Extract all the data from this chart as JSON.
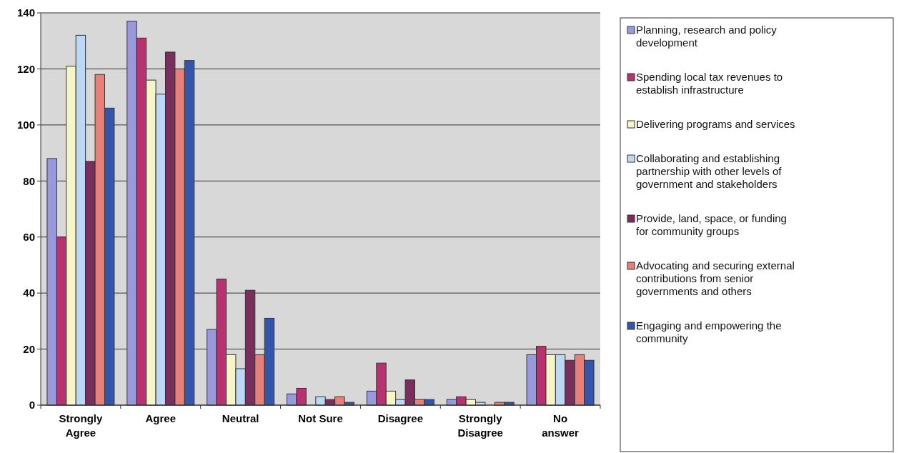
{
  "chart_data": {
    "type": "bar",
    "categories": [
      "Strongly Agree",
      "Agree",
      "Neutral",
      "Not Sure",
      "Disagree",
      "Strongly Disagree",
      "No answer"
    ],
    "ylim": [
      0,
      140
    ],
    "yticks": [
      0,
      20,
      40,
      60,
      80,
      100,
      120,
      140
    ],
    "grid": "y",
    "legend": "right",
    "series": [
      {
        "name": "Planning, research and policy development",
        "color": "#9999dd",
        "values": [
          88,
          137,
          27,
          4,
          5,
          2,
          18
        ]
      },
      {
        "name": "Spending local tax revenues to establish infrastructure",
        "color": "#b83270",
        "values": [
          60,
          131,
          45,
          6,
          15,
          3,
          21
        ]
      },
      {
        "name": "Delivering programs and services",
        "color": "#f5f5c8",
        "values": [
          121,
          116,
          18,
          0,
          5,
          2,
          18
        ]
      },
      {
        "name": "Collaborating and establishing partnership with other levels of government and stakeholders",
        "color": "#bcd8f5",
        "values": [
          132,
          111,
          13,
          3,
          2,
          1,
          18
        ]
      },
      {
        "name": "Provide, land, space, or funding for community groups",
        "color": "#7a2e5e",
        "values": [
          87,
          126,
          41,
          2,
          9,
          0,
          16
        ]
      },
      {
        "name": "Advocating and securing external contributions from senior governments and others",
        "color": "#e8807a",
        "values": [
          118,
          120,
          18,
          3,
          2,
          1,
          18
        ]
      },
      {
        "name": "Engaging and empowering the community",
        "color": "#3355aa",
        "values": [
          106,
          123,
          31,
          1,
          2,
          1,
          16
        ]
      }
    ]
  }
}
